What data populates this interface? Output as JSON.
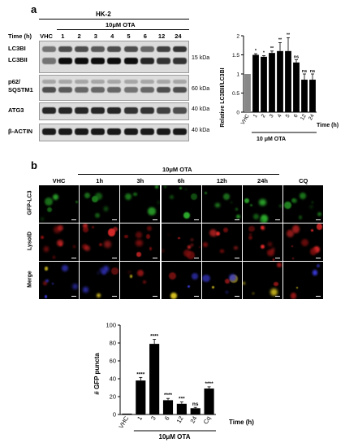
{
  "panel_a": {
    "letter": "a",
    "cell_line": "HK-2",
    "treatment": "10μM OTA",
    "time_label": "Time (h)",
    "lanes": [
      "VHC",
      "1",
      "2",
      "3",
      "4",
      "5",
      "6",
      "12",
      "24"
    ],
    "blots": [
      {
        "labels": [
          "LC3BI",
          "LC3BII"
        ],
        "kda": "15 kDa"
      },
      {
        "labels": [
          "p62/",
          "SQSTM1"
        ],
        "kda": "60 kDa"
      },
      {
        "labels": [
          "ATG3"
        ],
        "kda": "40 kDa"
      },
      {
        "labels": [
          "β-ACTIN"
        ],
        "kda": "40 kDa"
      }
    ]
  },
  "panel_b": {
    "letter": "b",
    "treatment": "10μM OTA",
    "columns": [
      "VHC",
      "1h",
      "3h",
      "6h",
      "12h",
      "24h",
      "CQ"
    ],
    "rows": [
      "GFP-LC3",
      "LysoID",
      "Merge"
    ]
  },
  "chart_data": [
    {
      "type": "bar",
      "ylabel": "Relative LC3BII/LC3BI",
      "xlabel": "Time (h)",
      "group_label": "10 μM OTA",
      "categories": [
        "VHC",
        "1",
        "2",
        "3",
        "4",
        "5",
        "6",
        "12",
        "24"
      ],
      "values": [
        1.0,
        1.5,
        1.45,
        1.55,
        1.6,
        1.6,
        1.3,
        0.85,
        0.85
      ],
      "errors": [
        0.0,
        0.03,
        0.03,
        0.05,
        0.22,
        0.35,
        0.07,
        0.15,
        0.15
      ],
      "significance": [
        "",
        "*",
        "*",
        "**",
        "**",
        "**",
        "ns",
        "ns",
        "ns"
      ],
      "colors": [
        "#888888",
        "#000000",
        "#000000",
        "#000000",
        "#000000",
        "#000000",
        "#000000",
        "#000000",
        "#000000"
      ],
      "ylim": [
        0,
        2
      ],
      "yticks": [
        "0",
        "0.5",
        "1",
        "1.5",
        "2"
      ]
    },
    {
      "type": "bar",
      "ylabel": "# GFP puncta",
      "xlabel": "Time (h)",
      "group_label": "10μM OTA",
      "categories": [
        "VHC",
        "1",
        "3",
        "6",
        "12",
        "24",
        "Cq"
      ],
      "values": [
        1,
        38,
        79,
        16,
        12,
        7,
        29
      ],
      "errors": [
        0,
        3.5,
        5,
        2,
        2,
        1,
        2
      ],
      "significance": [
        "",
        "****",
        "****",
        "****",
        "***",
        "ns",
        "****"
      ],
      "ylim": [
        0,
        100
      ],
      "yticks": [
        "0",
        "20",
        "40",
        "60",
        "80",
        "100"
      ]
    }
  ]
}
